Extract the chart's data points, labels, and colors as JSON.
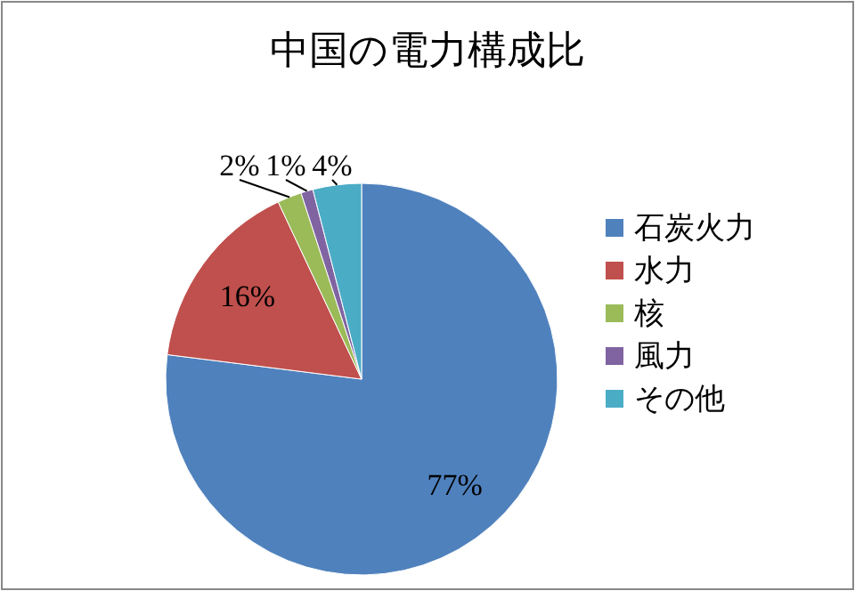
{
  "chart_data": {
    "type": "pie",
    "title": "中国の電力構成比",
    "categories": [
      "石炭火力",
      "水力",
      "核",
      "風力",
      "その他"
    ],
    "values": [
      77,
      16,
      2,
      1,
      4
    ],
    "value_labels": [
      "77%",
      "16%",
      "2%",
      "1%",
      "4%"
    ],
    "colors": [
      "#4f81bd",
      "#c0504d",
      "#9bbb59",
      "#8064a2",
      "#4bacc6"
    ],
    "legend": "right"
  }
}
